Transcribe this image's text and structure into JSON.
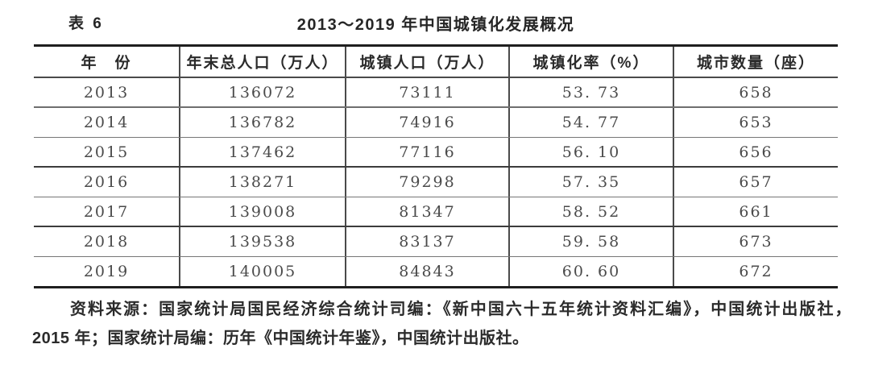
{
  "caption": {
    "label": "表 6",
    "title": "2013～2019 年中国城镇化发展概况"
  },
  "table": {
    "columns": [
      "年　份",
      "年末总人口（万人）",
      "城镇人口（万人）",
      "城镇化率（%）",
      "城市数量（座）"
    ],
    "rows": [
      [
        "2013",
        "136072",
        "73111",
        "53. 73",
        "658"
      ],
      [
        "2014",
        "136782",
        "74916",
        "54. 77",
        "653"
      ],
      [
        "2015",
        "137462",
        "77116",
        "56. 10",
        "656"
      ],
      [
        "2016",
        "138271",
        "79298",
        "57. 35",
        "657"
      ],
      [
        "2017",
        "139008",
        "81347",
        "58. 52",
        "661"
      ],
      [
        "2018",
        "139538",
        "83137",
        "59. 58",
        "673"
      ],
      [
        "2019",
        "140005",
        "84843",
        "60. 60",
        "672"
      ]
    ]
  },
  "source": {
    "line1": "资料来源：国家统计局国民经济综合统计司编：《新中国六十五年统计资料汇编》，中国统计出版社，",
    "line2": "2015 年；国家统计局编：历年《中国统计年鉴》，中国统计出版社。"
  },
  "colors": {
    "page_background": "#ffffff",
    "heavy_rule": "#1f1f1f",
    "light_rule": "#767676",
    "header_text": "#2a2a2a",
    "data_text": "#4a4a4a"
  }
}
